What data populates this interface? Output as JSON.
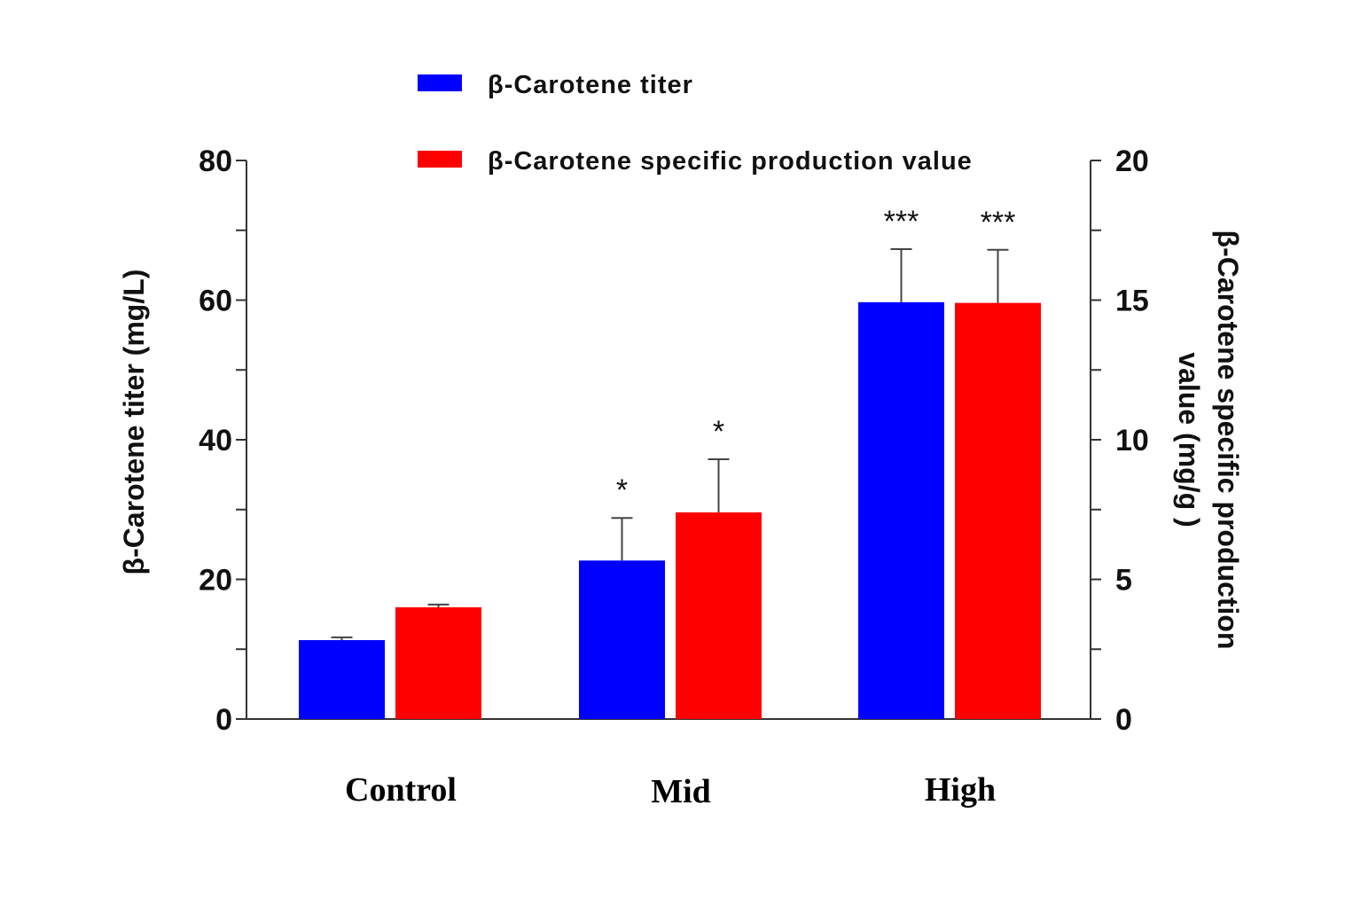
{
  "chart_data": {
    "type": "bar",
    "title": "",
    "categories": [
      "Control",
      "Mid",
      "High"
    ],
    "series": [
      {
        "name": "β-Carotene titer",
        "axis": "left",
        "color": "#0000ff",
        "values": [
          11.3,
          22.7,
          59.7
        ],
        "errors": [
          0.4,
          6.1,
          7.6
        ],
        "significance": [
          "",
          "*",
          "***"
        ]
      },
      {
        "name": "β-Carotene specific production value",
        "axis": "right",
        "color": "#ff0000",
        "values": [
          4.0,
          7.4,
          14.9
        ],
        "errors": [
          0.1,
          1.9,
          1.9
        ],
        "significance": [
          "",
          "*",
          "***"
        ]
      }
    ],
    "ylabel": "β-Carotene titer (mg/L)",
    "ylabel_right_lines": [
      "β-Carotene specific production",
      "value (mg/g )"
    ],
    "ylim": [
      0,
      80
    ],
    "ylim_right": [
      0,
      20
    ],
    "yticks": [
      0,
      20,
      40,
      60,
      80
    ],
    "yticks_right": [
      0,
      5,
      10,
      15,
      20
    ],
    "grid": false,
    "legend_position": "top-center"
  }
}
